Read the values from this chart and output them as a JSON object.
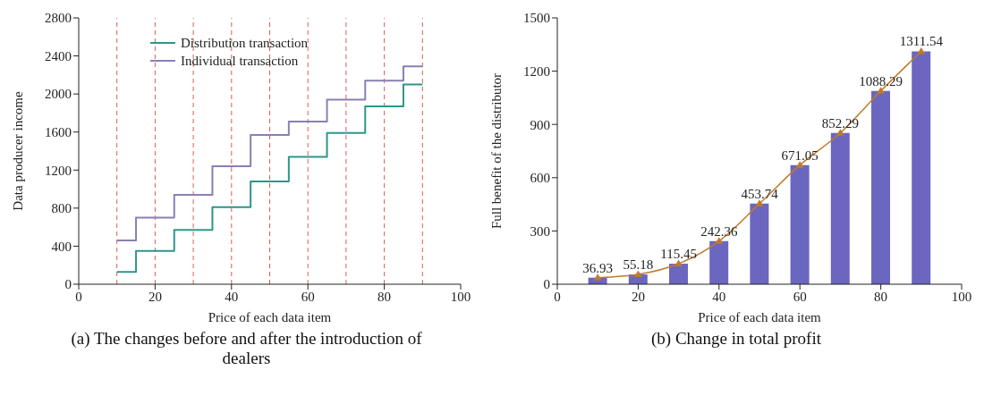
{
  "chart_data": [
    {
      "type": "step",
      "title": "(a) The changes before and after the introduction of dealers",
      "xlabel": "Price of each data item",
      "ylabel": "Data producer income",
      "x": [
        10,
        15,
        25,
        35,
        45,
        55,
        65,
        75,
        85,
        90
      ],
      "series": [
        {
          "name": "Distribution transaction",
          "color": "#2e9688",
          "values": [
            130,
            350,
            570,
            810,
            1080,
            1340,
            1590,
            1870,
            2100,
            2100
          ]
        },
        {
          "name": "Individual transaction",
          "color": "#8a7fb4",
          "values": [
            460,
            700,
            940,
            1240,
            1570,
            1710,
            1940,
            2140,
            2290,
            2290
          ]
        }
      ],
      "xlim": [
        0,
        100
      ],
      "xticks": [
        0,
        20,
        40,
        60,
        80,
        100
      ],
      "ylim": [
        0,
        2800
      ],
      "yticks": [
        0,
        400,
        800,
        1200,
        1600,
        2000,
        2400,
        2800
      ],
      "ref_lines": [
        {
          "axis": "x",
          "value": 10,
          "color": "#d0605a",
          "line_style": "dashed"
        },
        {
          "axis": "x",
          "value": 20,
          "color": "#d0605a",
          "line_style": "dashed"
        },
        {
          "axis": "x",
          "value": 30,
          "color": "#d0605a",
          "line_style": "dashed"
        },
        {
          "axis": "x",
          "value": 40,
          "color": "#d0605a",
          "line_style": "dashed"
        },
        {
          "axis": "x",
          "value": 50,
          "color": "#d0605a",
          "line_style": "dashed"
        },
        {
          "axis": "x",
          "value": 60,
          "color": "#d0605a",
          "line_style": "dashed"
        },
        {
          "axis": "x",
          "value": 70,
          "color": "#d0605a",
          "line_style": "dashed"
        },
        {
          "axis": "x",
          "value": 80,
          "color": "#d0605a",
          "line_style": "dashed"
        },
        {
          "axis": "x",
          "value": 90,
          "color": "#d0605a",
          "line_style": "dashed"
        }
      ],
      "legend": "top",
      "grid": false,
      "marker": "none",
      "line_style": "solid"
    },
    {
      "type": "bar",
      "title": "(b) Change in total profit",
      "xlabel": "Price of each data item",
      "ylabel": "Full benefit of the distributor",
      "x": [
        10,
        20,
        30,
        40,
        50,
        60,
        70,
        80,
        90
      ],
      "series": [
        {
          "type": "bar",
          "color": "#6b66bf",
          "values": [
            36.93,
            55.18,
            115.45,
            242.36,
            453.74,
            671.05,
            852.29,
            1088.29,
            1311.54
          ]
        },
        {
          "type": "line",
          "color": "#c07a28",
          "values": [
            36.93,
            55.18,
            115.45,
            242.36,
            453.74,
            671.05,
            852.29,
            1088.29,
            1311.54
          ],
          "value_labels": [
            "36.93",
            "55.18",
            "115.45",
            "242.36",
            "453.74",
            "671.05",
            "852.29",
            "1088.29",
            "1311.54"
          ]
        }
      ],
      "xlim": [
        0,
        100
      ],
      "xticks": [
        0,
        20,
        40,
        60,
        80,
        100
      ],
      "ylim": [
        0,
        1500
      ],
      "yticks": [
        0,
        300,
        600,
        900,
        1200,
        1500
      ],
      "marker": "triangle",
      "grid": false,
      "legend": false
    }
  ]
}
